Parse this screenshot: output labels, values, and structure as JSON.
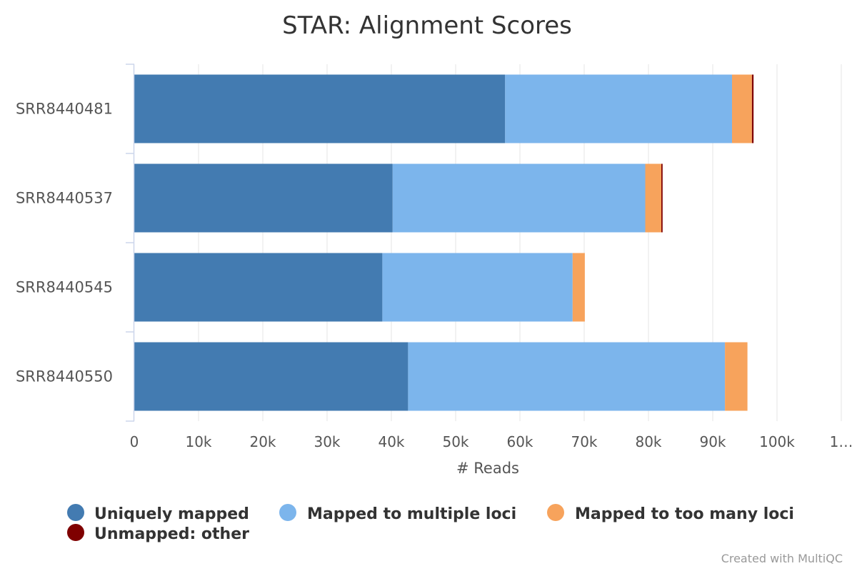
{
  "credit": "Created with MultiQC",
  "chart_data": {
    "type": "bar",
    "orientation": "horizontal",
    "stacked": true,
    "title": "STAR: Alignment Scores",
    "xlabel": "# Reads",
    "ylabel": "",
    "xlim": [
      0,
      110000
    ],
    "x_ticks": [
      "0",
      "10k",
      "20k",
      "30k",
      "40k",
      "50k",
      "60k",
      "70k",
      "80k",
      "90k",
      "100k",
      "1…"
    ],
    "grid": true,
    "legend_position": "bottom",
    "categories": [
      "SRR8440481",
      "SRR8440537",
      "SRR8440545",
      "SRR8440550"
    ],
    "series": [
      {
        "name": "Uniquely mapped",
        "color": "#437bb1",
        "values": [
          57700,
          40200,
          38600,
          42600
        ]
      },
      {
        "name": "Mapped to multiple loci",
        "color": "#7cb5ec",
        "values": [
          35300,
          39300,
          29600,
          49300
        ]
      },
      {
        "name": "Mapped to too many loci",
        "color": "#f7a35c",
        "values": [
          3100,
          2500,
          1900,
          3500
        ]
      },
      {
        "name": "Unmapped: other",
        "color": "#7f0000",
        "values": [
          250,
          200,
          0,
          0
        ]
      }
    ]
  }
}
